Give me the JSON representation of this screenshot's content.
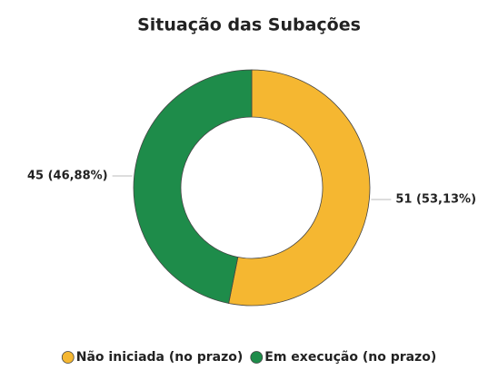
{
  "chart_data": {
    "type": "donut",
    "title": "Situação das Subações",
    "categories": [
      "Não iniciada (no prazo)",
      "Em execução (no prazo)"
    ],
    "values": [
      51,
      45
    ],
    "value_labels": [
      "51 (53,13%)",
      "45 (46,88%)"
    ],
    "colors": [
      "#f5b731",
      "#1e8c4a"
    ],
    "legend": "bottom"
  }
}
